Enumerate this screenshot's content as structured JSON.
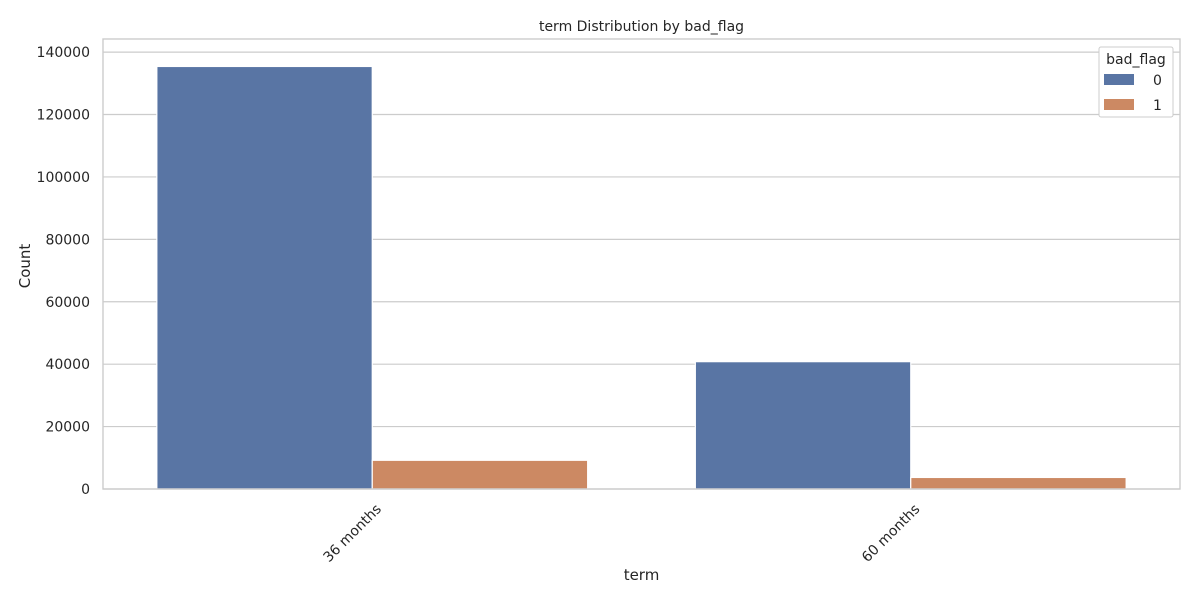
{
  "chart_data": {
    "type": "bar",
    "title": "term Distribution by bad_flag",
    "xlabel": "term",
    "ylabel": "Count",
    "categories": [
      "36 months",
      "60 months"
    ],
    "series": [
      {
        "name": "0",
        "values": [
          135400,
          40800
        ],
        "color": "#5975a4"
      },
      {
        "name": "1",
        "values": [
          9200,
          3700
        ],
        "color": "#cc8963"
      }
    ],
    "ylim": [
      0,
      144200
    ],
    "yticks": [
      0,
      20000,
      40000,
      60000,
      80000,
      100000,
      120000,
      140000
    ],
    "grid": true,
    "legend": {
      "title": "bad_flag",
      "placement": "top-right"
    }
  }
}
